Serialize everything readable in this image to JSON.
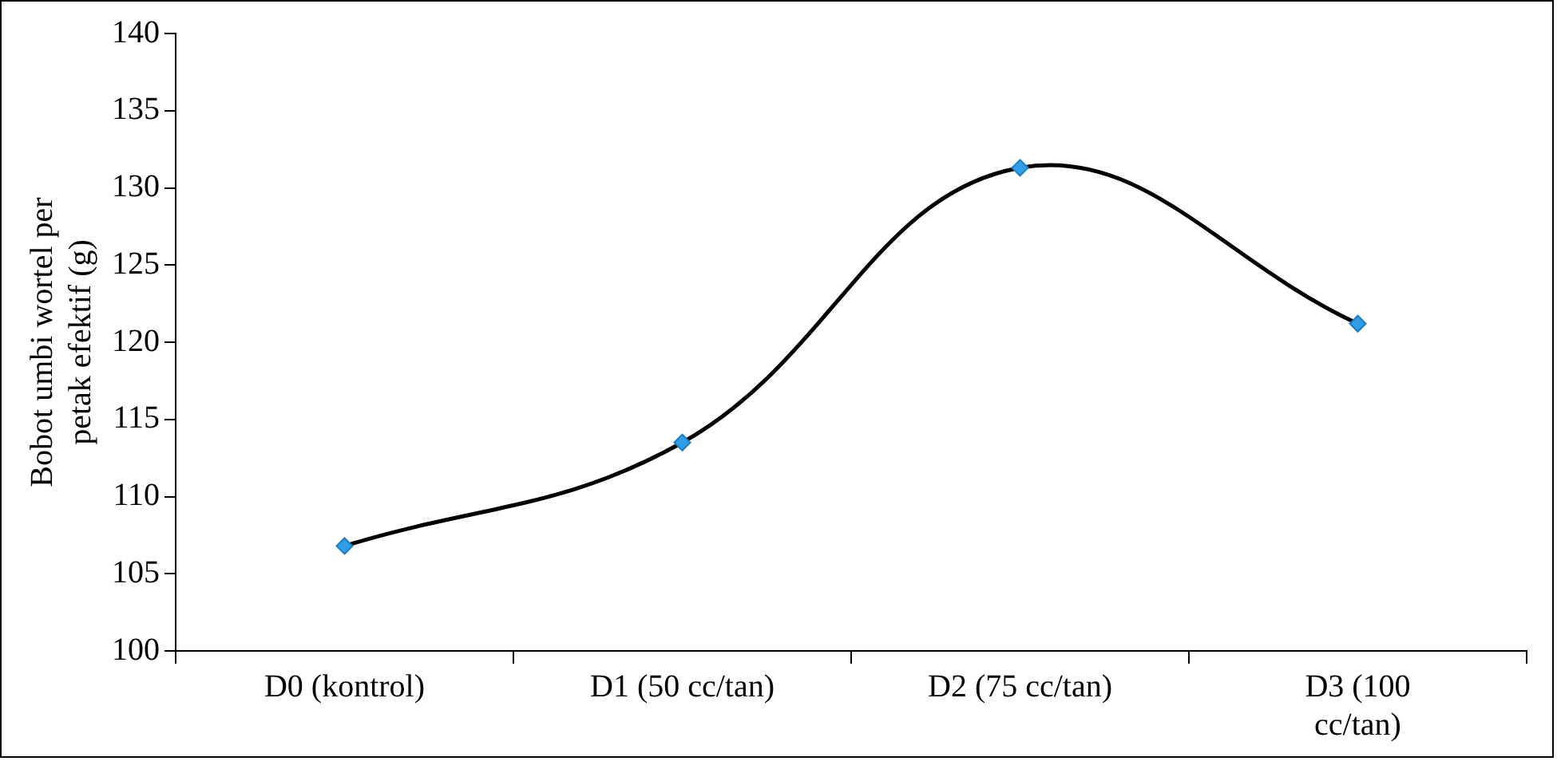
{
  "chart_data": {
    "type": "line",
    "ylabel": "Bobot umbi wortel per petak efektif (g)",
    "categories": [
      "D0 (kontrol)",
      "D1 (50 cc/tan)",
      "D2 (75 cc/tan)",
      "D3 (100 cc/tan)"
    ],
    "series": [
      {
        "color": "#000000",
        "values": [
          106.8,
          113.5,
          131.3,
          121.2
        ]
      }
    ],
    "marker": "diamond",
    "ylim": [
      100,
      140
    ],
    "yticks": [
      100,
      105,
      110,
      115,
      120,
      125,
      130,
      135,
      140
    ],
    "grid": false,
    "legend": false
  }
}
